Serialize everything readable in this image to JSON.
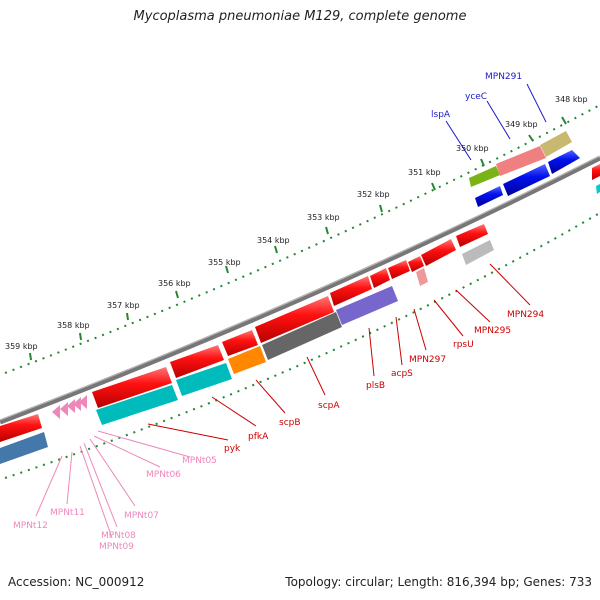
{
  "title": "Mycoplasma pneumoniae M129, complete genome",
  "footer": {
    "accession": "Accession: NC_000912",
    "summary": "Topology: circular; Length: 816,394 bp; Genes: 733"
  },
  "ticks": [
    "348 kbp",
    "349 kbp",
    "350 kbp",
    "351 kbp",
    "352 kbp",
    "353 kbp",
    "354 kbp",
    "355 kbp",
    "356 kbp",
    "357 kbp",
    "358 kbp",
    "359 kbp"
  ],
  "gene_labels_top": [
    "MPN291",
    "yceC",
    "lspA"
  ],
  "gene_labels_bottom": [
    "MPN294",
    "MPN295",
    "rpsU",
    "MPN297",
    "acpS",
    "plsB",
    "scpA",
    "scpB",
    "pfkA",
    "pyk"
  ],
  "trna_labels": [
    "MPNt05",
    "MPNt06",
    "MPNt07",
    "MPNt08",
    "MPNt09",
    "MPNt11",
    "MPNt12"
  ],
  "colors": {
    "cds": "#ee1111",
    "trna": "#ee88bb",
    "label_red": "#cc0000",
    "label_blue": "#1a1acc",
    "label_pink": "#ee88bb",
    "tick_green": "#228833",
    "backbone": "#777777"
  }
}
